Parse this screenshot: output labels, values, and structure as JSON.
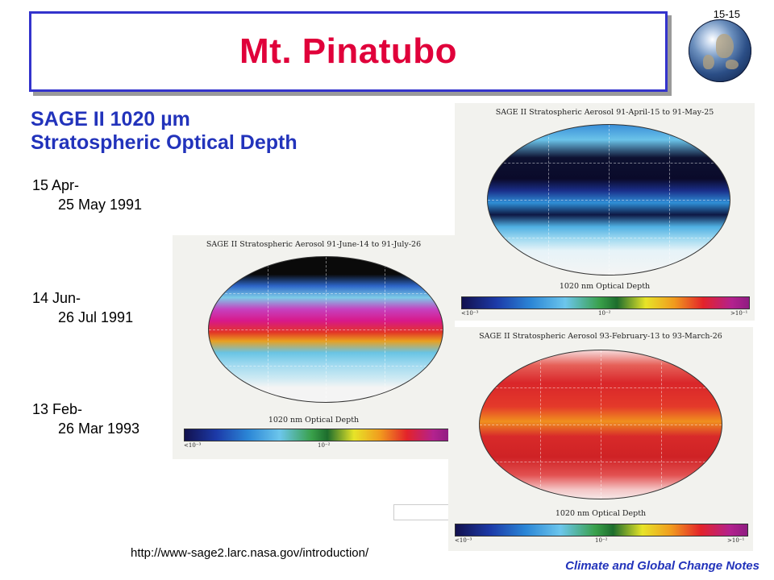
{
  "header": {
    "title": "Mt. Pinatubo",
    "slide_number": "15-15"
  },
  "sage_heading": {
    "line1": "SAGE II 1020 µm",
    "line2": "Stratospheric Optical Depth"
  },
  "dates": [
    {
      "line1": "15 Apr-",
      "line2": "25 May 1991"
    },
    {
      "line1": "14 Jun-",
      "line2": "26 Jul 1991"
    },
    {
      "line1": "13 Feb-",
      "line2": "26 Mar 1993"
    }
  ],
  "panels": [
    {
      "caption": "SAGE II Stratospheric Aerosol  91-April-15 to 91-May-25",
      "axis_label": "1020 nm Optical Depth",
      "ticks": {
        "low": "<10⁻³",
        "mid": "10⁻²",
        "high": ">10⁻¹"
      }
    },
    {
      "caption": "SAGE II Stratospheric Aerosol  91-June-14 to 91-July-26",
      "axis_label": "1020 nm Optical Depth",
      "ticks": {
        "low": "<10⁻³",
        "mid": "10⁻²",
        "high": ""
      }
    },
    {
      "caption": "SAGE II Stratospheric Aerosol  93-February-13 to 93-March-26",
      "axis_label": "1020 nm Optical Depth",
      "ticks": {
        "low": "<10⁻³",
        "mid": "10⁻²",
        "high": ">10⁻¹"
      }
    }
  ],
  "source_url": "http://www-sage2.larc.nasa.gov/introduction/",
  "footer": "Climate and Global Change Notes",
  "colors": {
    "title": "#e0003a",
    "heading": "#2233bb",
    "title_border": "#3333cc"
  }
}
